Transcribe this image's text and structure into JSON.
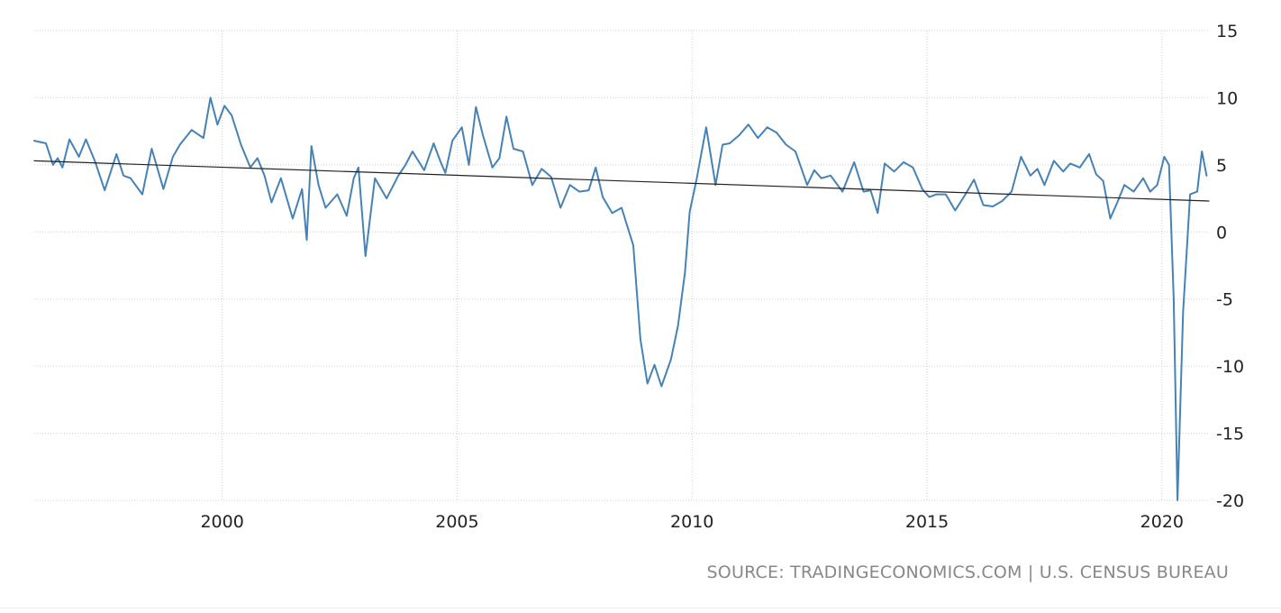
{
  "chart_data": {
    "type": "line",
    "title": "",
    "xlabel": "",
    "ylabel": "",
    "x_range": [
      1996.0,
      2021.0
    ],
    "ylim": [
      -20,
      15
    ],
    "y_ticks": [
      15,
      10,
      5,
      0,
      -5,
      -10,
      -15,
      -20
    ],
    "y_tick_labels": [
      "15",
      "10",
      "5",
      "0",
      "-5",
      "-10",
      "-15",
      "-20"
    ],
    "x_ticks": [
      2000,
      2005,
      2010,
      2015,
      2020
    ],
    "x_tick_labels": [
      "2000",
      "2005",
      "2010",
      "2015",
      "2020"
    ],
    "grid": true,
    "legend": "none",
    "series": [
      {
        "color": "#4682b4",
        "x": [
          1996.0,
          1996.25,
          1996.4,
          1996.5,
          1996.6,
          1996.75,
          1996.95,
          1997.1,
          1997.3,
          1997.5,
          1997.75,
          1997.9,
          1998.05,
          1998.3,
          1998.5,
          1998.75,
          1998.95,
          1999.1,
          1999.35,
          1999.6,
          1999.75,
          1999.9,
          2000.05,
          2000.2,
          2000.4,
          2000.6,
          2000.75,
          2000.9,
          2001.05,
          2001.25,
          2001.5,
          2001.7,
          2001.8,
          2001.9,
          2002.05,
          2002.2,
          2002.45,
          2002.65,
          2002.8,
          2002.9,
          2003.05,
          2003.25,
          2003.5,
          2003.75,
          2003.9,
          2004.05,
          2004.3,
          2004.5,
          2004.65,
          2004.75,
          2004.9,
          2005.1,
          2005.25,
          2005.4,
          2005.55,
          2005.75,
          2005.9,
          2006.05,
          2006.2,
          2006.4,
          2006.6,
          2006.8,
          2007.0,
          2007.2,
          2007.4,
          2007.6,
          2007.8,
          2007.95,
          2008.1,
          2008.3,
          2008.5,
          2008.75,
          2008.9,
          2009.05,
          2009.2,
          2009.35,
          2009.55,
          2009.7,
          2009.85,
          2009.95,
          2010.1,
          2010.3,
          2010.5,
          2010.65,
          2010.8,
          2011.0,
          2011.2,
          2011.4,
          2011.6,
          2011.8,
          2012.0,
          2012.2,
          2012.45,
          2012.6,
          2012.75,
          2012.95,
          2013.2,
          2013.45,
          2013.65,
          2013.8,
          2013.95,
          2014.1,
          2014.3,
          2014.5,
          2014.7,
          2014.9,
          2015.05,
          2015.2,
          2015.4,
          2015.6,
          2015.8,
          2016.0,
          2016.2,
          2016.4,
          2016.6,
          2016.8,
          2017.0,
          2017.2,
          2017.35,
          2017.5,
          2017.7,
          2017.9,
          2018.05,
          2018.25,
          2018.45,
          2018.6,
          2018.75,
          2018.9,
          2019.05,
          2019.2,
          2019.4,
          2019.6,
          2019.75,
          2019.9,
          2020.05,
          2020.15,
          2020.25,
          2020.33,
          2020.45,
          2020.6,
          2020.75,
          2020.85,
          2020.95
        ],
        "values": [
          6.8,
          6.6,
          5.0,
          5.5,
          4.8,
          6.9,
          5.6,
          6.9,
          5.2,
          3.1,
          5.8,
          4.2,
          4.0,
          2.8,
          6.2,
          3.2,
          5.6,
          6.5,
          7.6,
          7.0,
          10.0,
          8.0,
          9.4,
          8.7,
          6.5,
          4.8,
          5.5,
          4.2,
          2.2,
          4.0,
          1.0,
          3.2,
          -0.6,
          6.4,
          3.5,
          1.8,
          2.8,
          1.2,
          4.0,
          4.8,
          -1.8,
          4.0,
          2.5,
          4.2,
          5.0,
          6.0,
          4.6,
          6.6,
          5.2,
          4.4,
          6.8,
          7.8,
          5.0,
          9.3,
          7.2,
          4.8,
          5.5,
          8.6,
          6.2,
          6.0,
          3.5,
          4.7,
          4.1,
          1.8,
          3.5,
          3.0,
          3.1,
          4.8,
          2.6,
          1.4,
          1.8,
          -1.0,
          -8.0,
          -11.3,
          -9.9,
          -11.5,
          -9.5,
          -7.0,
          -3.0,
          1.5,
          4.0,
          7.8,
          3.5,
          6.5,
          6.6,
          7.2,
          8.0,
          7.0,
          7.8,
          7.4,
          6.5,
          6.0,
          3.5,
          4.6,
          4.0,
          4.2,
          3.0,
          5.2,
          3.0,
          3.1,
          1.4,
          5.1,
          4.5,
          5.2,
          4.8,
          3.2,
          2.6,
          2.8,
          2.8,
          1.6,
          2.7,
          3.9,
          2.0,
          1.9,
          2.3,
          3.0,
          5.6,
          4.2,
          4.7,
          3.5,
          5.3,
          4.5,
          5.1,
          4.8,
          5.8,
          4.3,
          3.8,
          1.0,
          2.2,
          3.5,
          3.0,
          4.0,
          3.0,
          3.5,
          5.6,
          5.0,
          -5.0,
          -20.0,
          -6.0,
          2.8,
          3.0,
          6.0,
          4.2
        ]
      },
      {
        "color": "#222222",
        "x": [
          1996.0,
          2021.0
        ],
        "values": [
          5.3,
          2.3
        ]
      }
    ]
  },
  "source_text": "SOURCE: TRADINGECONOMICS.COM | U.S. CENSUS BUREAU"
}
